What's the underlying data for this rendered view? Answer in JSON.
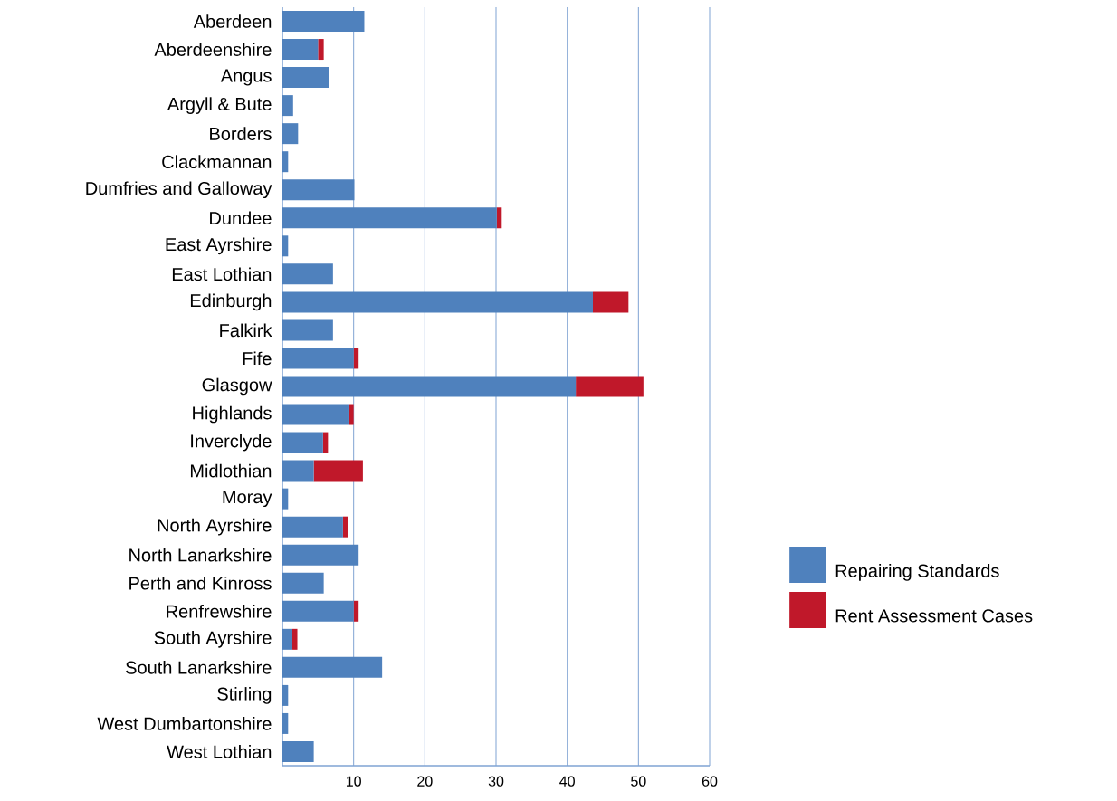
{
  "chart_data": {
    "type": "bar",
    "orientation": "horizontal",
    "stacked": true,
    "categories": [
      "Aberdeen",
      "Aberdeenshire",
      "Angus",
      "Argyll & Bute",
      "Borders",
      "Clackmannan",
      "Dumfries and Galloway",
      "Dundee",
      "East Ayrshire",
      "East Lothian",
      "Edinburgh",
      "Falkirk",
      "Fife",
      "Glasgow",
      "Highlands",
      "Inverclyde",
      "Midlothian",
      "Moray",
      "North Ayrshire",
      "North Lanarkshire",
      "Perth and Kinross",
      "Renfrewshire",
      "South Ayrshire",
      "South Lanarkshire",
      "Stirling",
      "West Dumbartonshire",
      "West Lothian"
    ],
    "series": [
      {
        "name": "Repairing Standards",
        "color": "#4f81bd",
        "values": [
          11.5,
          5.0,
          6.6,
          1.5,
          2.2,
          0.8,
          10.1,
          30.1,
          0.8,
          7.1,
          43.6,
          7.1,
          10.0,
          41.2,
          9.4,
          5.7,
          4.4,
          0.8,
          8.5,
          10.7,
          5.8,
          10.0,
          1.4,
          14.0,
          0.8,
          0.8,
          4.4
        ]
      },
      {
        "name": "Rent Assessment Cases",
        "color": "#c0182a",
        "values": [
          0,
          0.8,
          0,
          0,
          0,
          0,
          0,
          0.7,
          0,
          0,
          5.0,
          0,
          0.7,
          9.5,
          0.6,
          0.7,
          6.9,
          0,
          0.7,
          0,
          0,
          0.7,
          0.7,
          0,
          0,
          0,
          0
        ]
      }
    ],
    "xlim": [
      0,
      60
    ],
    "xticks": [
      10,
      20,
      30,
      40,
      50,
      60
    ],
    "grid": "x",
    "legend": "right"
  }
}
